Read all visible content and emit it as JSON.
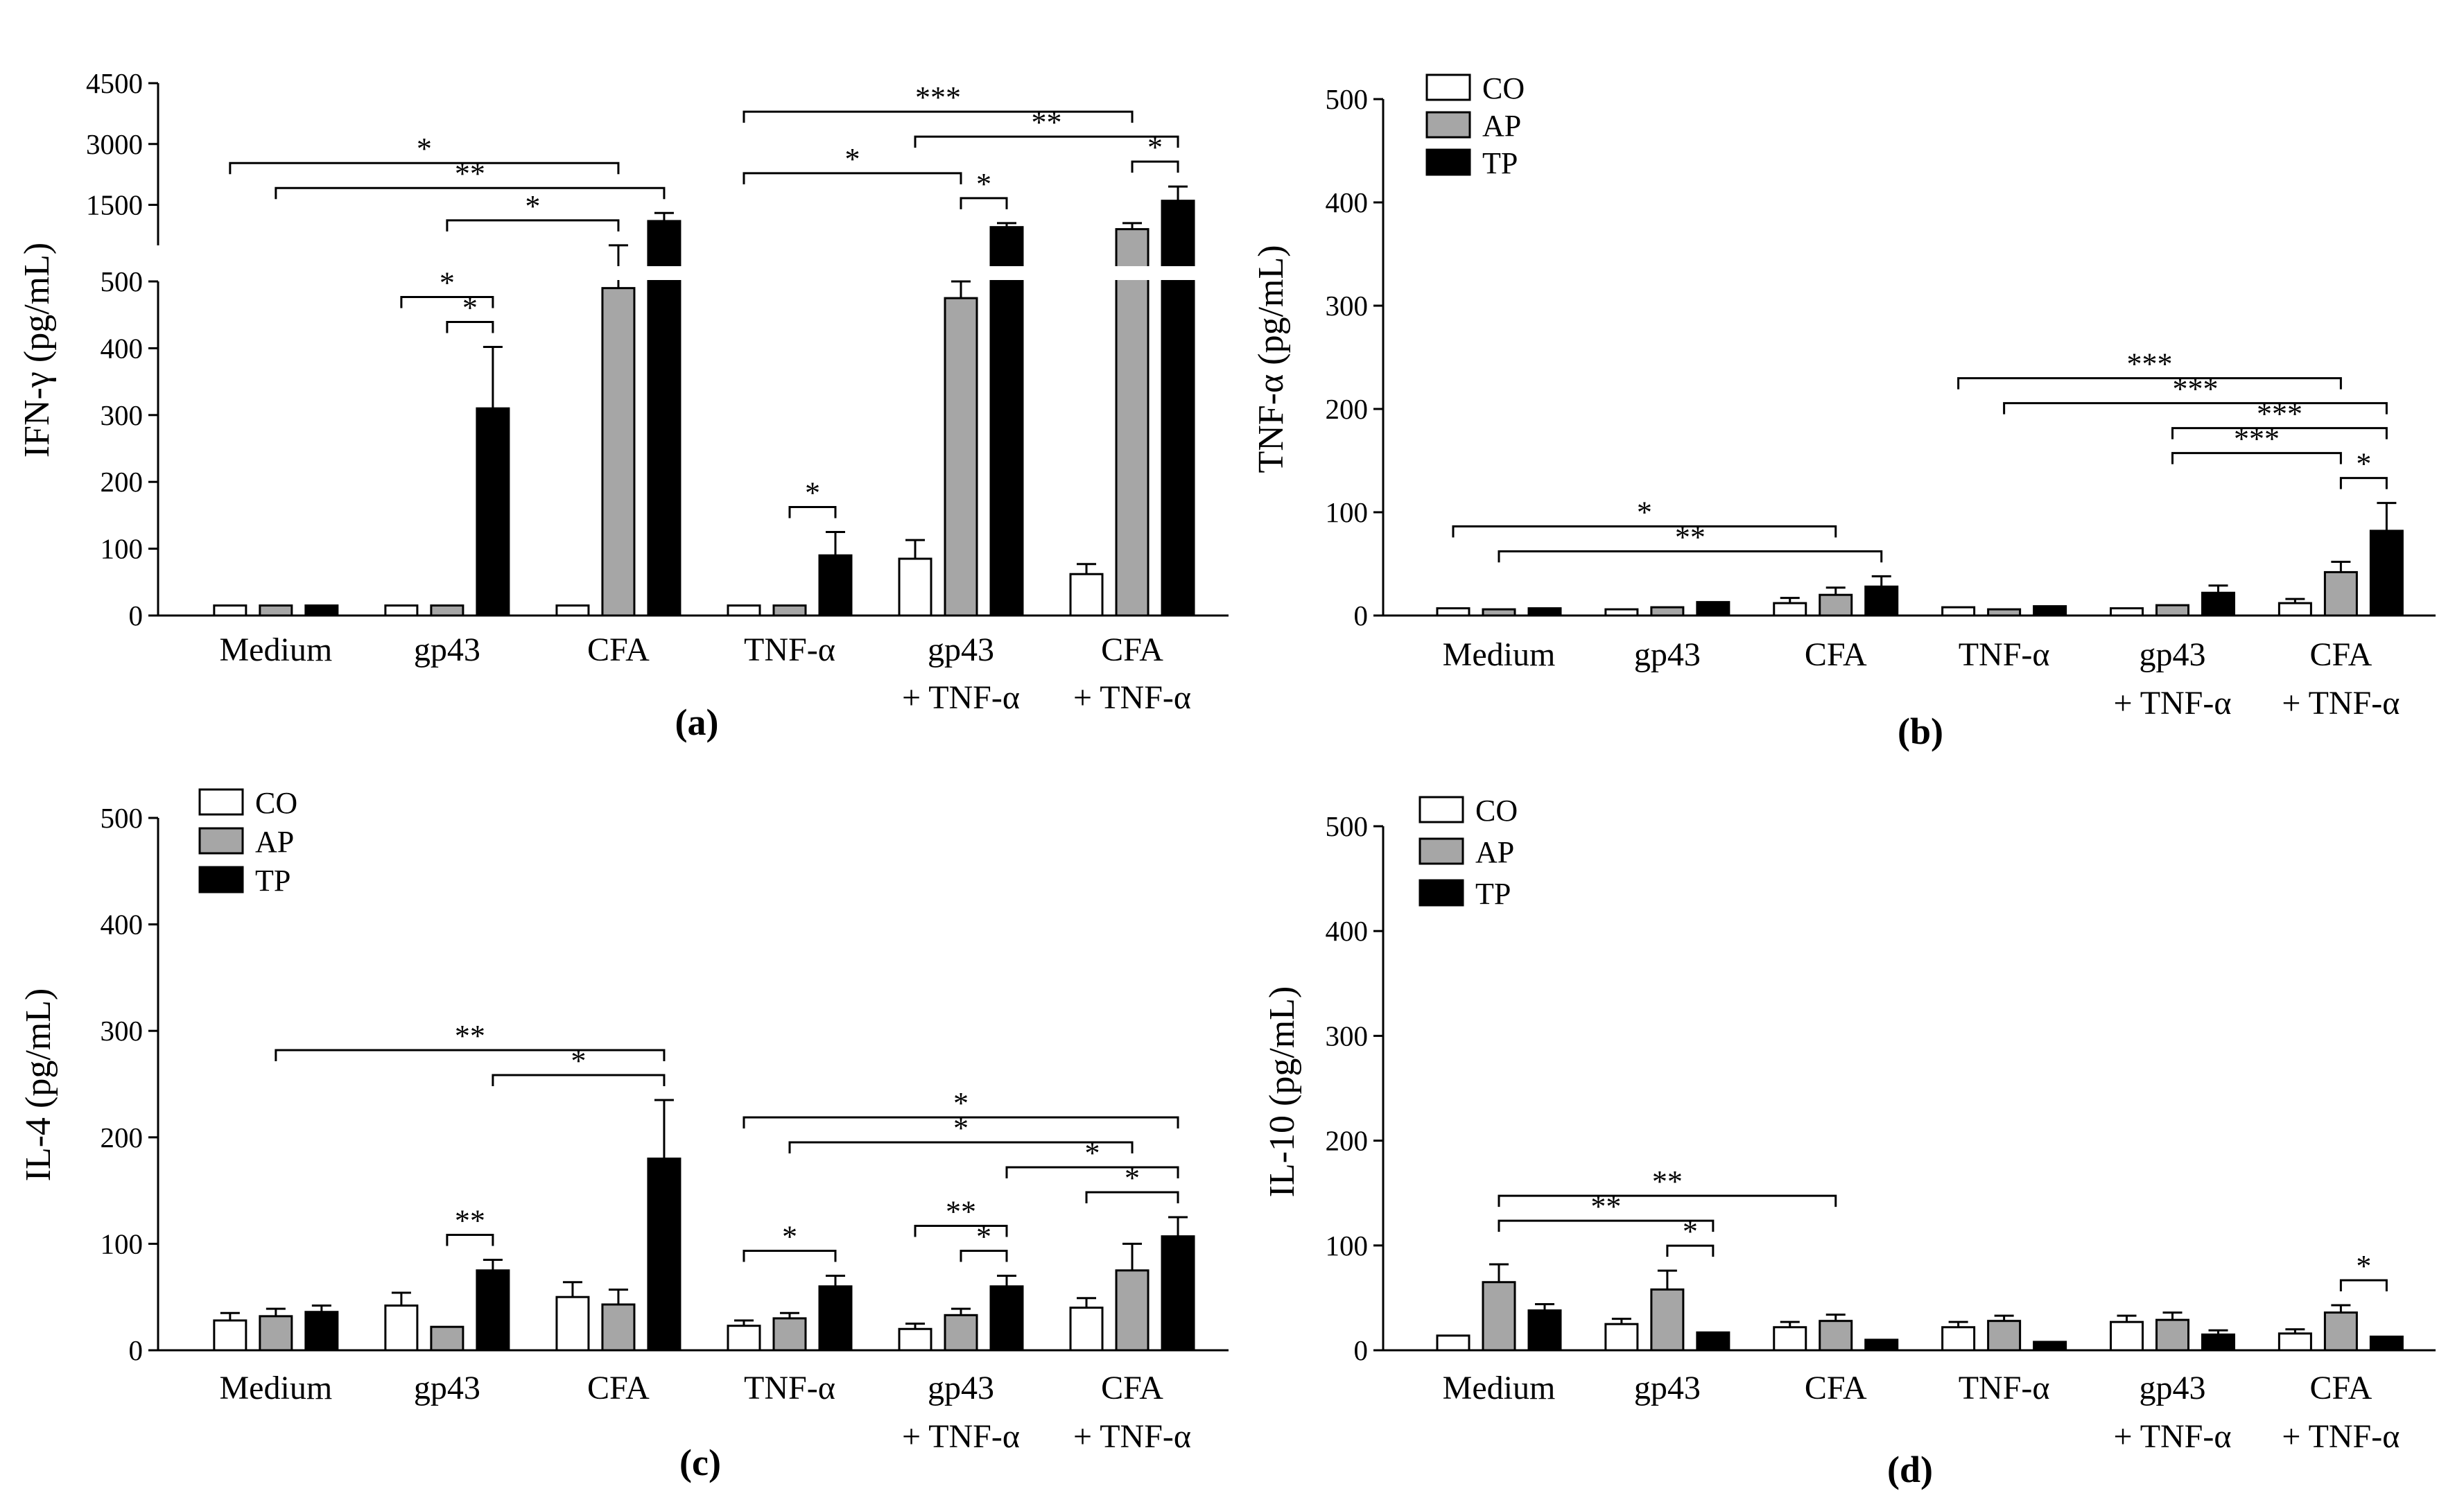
{
  "legend": [
    "CO",
    "AP",
    "TP"
  ],
  "colors": {
    "CO": "#ffffff",
    "AP": "#a6a6a6",
    "TP": "#000000",
    "stroke": "#000000"
  },
  "categories": [
    [
      "Medium"
    ],
    [
      "gp43"
    ],
    [
      "CFA"
    ],
    [
      "TNF-α"
    ],
    [
      "gp43",
      "+ TNF-α"
    ],
    [
      "CFA",
      "+ TNF-α"
    ]
  ],
  "chart_data": [
    {
      "type": "bar",
      "panel_label": "(a)",
      "ylabel": "IFN-γ (pg/mL)",
      "broken_axis": true,
      "ylim_lower": [
        0,
        500
      ],
      "yticks_lower": [
        0,
        100,
        200,
        300,
        400,
        500
      ],
      "ylim_upper": [
        500,
        4500
      ],
      "yticks_upper": [
        1500,
        3000,
        4500
      ],
      "series": [
        {
          "name": "CO",
          "values": [
            15,
            15,
            15,
            15,
            85,
            62
          ],
          "errors": [
            0,
            0,
            0,
            0,
            28,
            15
          ]
        },
        {
          "name": "AP",
          "values": [
            15,
            15,
            490,
            15,
            475,
            900
          ],
          "errors": [
            0,
            0,
            12,
            0,
            25,
            150
          ]
        },
        {
          "name": "TP",
          "values": [
            15,
            310,
            1100,
            90,
            950,
            1600
          ],
          "errors": [
            0,
            92,
            200,
            35,
            100,
            350
          ]
        }
      ],
      "significance": [
        {
          "label": "**",
          "from": [
            0,
            1
          ],
          "to": [
            2,
            2
          ]
        },
        {
          "label": "*",
          "from": [
            0,
            0
          ],
          "to": [
            2,
            1
          ]
        },
        {
          "label": "*",
          "from": [
            1,
            1
          ],
          "to": [
            2,
            1
          ]
        },
        {
          "label": "*",
          "from": [
            1,
            0
          ],
          "to": [
            1,
            2
          ]
        },
        {
          "label": "*",
          "from": [
            1,
            1
          ],
          "to": [
            1,
            2
          ]
        },
        {
          "label": "*",
          "from": [
            3,
            1
          ],
          "to": [
            3,
            2
          ]
        },
        {
          "label": "**",
          "from": [
            4,
            0
          ],
          "to": [
            5,
            2
          ]
        },
        {
          "label": "***",
          "from": [
            3,
            0
          ],
          "to": [
            5,
            1
          ]
        },
        {
          "label": "*",
          "from": [
            3,
            0
          ],
          "to": [
            4,
            1
          ]
        },
        {
          "label": "*",
          "from": [
            4,
            1
          ],
          "to": [
            4,
            2
          ]
        },
        {
          "label": "*",
          "from": [
            5,
            1
          ],
          "to": [
            5,
            2
          ]
        }
      ]
    },
    {
      "type": "bar",
      "panel_label": "(b)",
      "ylabel": "TNF-α (pg/mL)",
      "ylim": [
        0,
        500
      ],
      "yticks": [
        0,
        100,
        200,
        300,
        400,
        500
      ],
      "series": [
        {
          "name": "CO",
          "values": [
            7,
            6,
            12,
            8,
            7,
            12
          ],
          "errors": [
            0,
            0,
            5,
            0,
            0,
            4
          ]
        },
        {
          "name": "AP",
          "values": [
            6,
            8,
            20,
            6,
            10,
            42
          ],
          "errors": [
            0,
            0,
            7,
            0,
            0,
            10
          ]
        },
        {
          "name": "TP",
          "values": [
            7,
            13,
            28,
            9,
            22,
            82
          ],
          "errors": [
            0,
            0,
            10,
            0,
            7,
            27
          ]
        }
      ],
      "significance": [
        {
          "label": "**",
          "from": [
            0,
            1
          ],
          "to": [
            2,
            2
          ]
        },
        {
          "label": "*",
          "from": [
            0,
            0
          ],
          "to": [
            2,
            1
          ]
        },
        {
          "label": "***",
          "from": [
            3,
            1
          ],
          "to": [
            5,
            2
          ]
        },
        {
          "label": "***",
          "from": [
            4,
            1
          ],
          "to": [
            5,
            2
          ]
        },
        {
          "label": "*",
          "from": [
            5,
            1
          ],
          "to": [
            5,
            2
          ]
        },
        {
          "label": "***",
          "from": [
            3,
            0
          ],
          "to": [
            5,
            1
          ]
        },
        {
          "label": "***",
          "from": [
            4,
            1
          ],
          "to": [
            5,
            1
          ]
        }
      ]
    },
    {
      "type": "bar",
      "panel_label": "(c)",
      "ylabel": "IL-4 (pg/mL)",
      "ylim": [
        0,
        500
      ],
      "yticks": [
        0,
        100,
        200,
        300,
        400,
        500
      ],
      "series": [
        {
          "name": "CO",
          "values": [
            28,
            42,
            50,
            23,
            20,
            40
          ],
          "errors": [
            7,
            12,
            14,
            5,
            5,
            9
          ]
        },
        {
          "name": "AP",
          "values": [
            32,
            22,
            43,
            30,
            33,
            75
          ],
          "errors": [
            7,
            0,
            14,
            5,
            6,
            25
          ]
        },
        {
          "name": "TP",
          "values": [
            36,
            75,
            180,
            60,
            60,
            107
          ],
          "errors": [
            6,
            10,
            55,
            10,
            10,
            18
          ]
        }
      ],
      "significance": [
        {
          "label": "**",
          "from": [
            0,
            1
          ],
          "to": [
            2,
            2
          ]
        },
        {
          "label": "*",
          "from": [
            1,
            2
          ],
          "to": [
            2,
            2
          ]
        },
        {
          "label": "**",
          "from": [
            1,
            1
          ],
          "to": [
            1,
            2
          ]
        },
        {
          "label": "*",
          "from": [
            3,
            0
          ],
          "to": [
            5,
            2
          ]
        },
        {
          "label": "*",
          "from": [
            4,
            2
          ],
          "to": [
            5,
            2
          ]
        },
        {
          "label": "*",
          "from": [
            3,
            1
          ],
          "to": [
            5,
            1
          ]
        },
        {
          "label": "*",
          "from": [
            3,
            0
          ],
          "to": [
            3,
            2
          ]
        },
        {
          "label": "**",
          "from": [
            4,
            0
          ],
          "to": [
            4,
            2
          ]
        },
        {
          "label": "*",
          "from": [
            4,
            1
          ],
          "to": [
            4,
            2
          ]
        },
        {
          "label": "*",
          "from": [
            5,
            0
          ],
          "to": [
            5,
            2
          ]
        }
      ]
    },
    {
      "type": "bar",
      "panel_label": "(d)",
      "ylabel": "IL-10 (pg/mL)",
      "ylim": [
        0,
        500
      ],
      "yticks": [
        0,
        100,
        200,
        300,
        400,
        500
      ],
      "series": [
        {
          "name": "CO",
          "values": [
            14,
            25,
            22,
            22,
            27,
            16
          ],
          "errors": [
            0,
            5,
            5,
            5,
            6,
            4
          ]
        },
        {
          "name": "AP",
          "values": [
            65,
            58,
            28,
            28,
            29,
            36
          ],
          "errors": [
            17,
            18,
            6,
            5,
            7,
            7
          ]
        },
        {
          "name": "TP",
          "values": [
            38,
            17,
            10,
            8,
            15,
            13
          ],
          "errors": [
            6,
            0,
            0,
            0,
            4,
            0
          ]
        }
      ],
      "significance": [
        {
          "label": "**",
          "from": [
            0,
            1
          ],
          "to": [
            2,
            1
          ]
        },
        {
          "label": "**",
          "from": [
            0,
            1
          ],
          "to": [
            1,
            2
          ]
        },
        {
          "label": "*",
          "from": [
            1,
            1
          ],
          "to": [
            1,
            2
          ]
        },
        {
          "label": "*",
          "from": [
            5,
            1
          ],
          "to": [
            5,
            2
          ]
        }
      ]
    }
  ]
}
